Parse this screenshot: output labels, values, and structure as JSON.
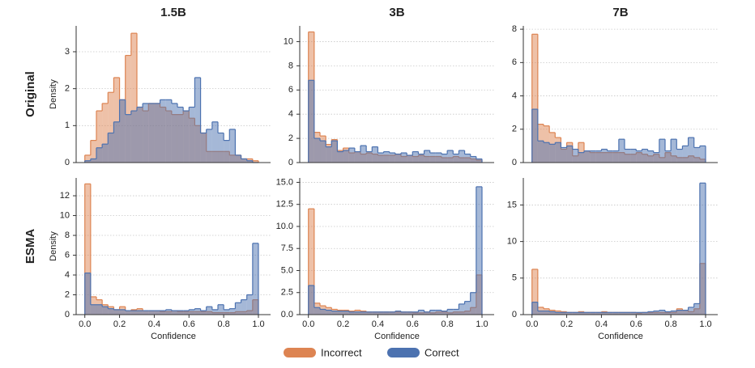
{
  "columns": [
    "1.5B",
    "3B",
    "7B"
  ],
  "rows": [
    "Original",
    "ESMA"
  ],
  "legend": [
    {
      "name": "Incorrect",
      "color": "#dd8452"
    },
    {
      "name": "Correct",
      "color": "#4c72b0"
    }
  ],
  "chart_data": [
    {
      "type": "histogram",
      "ylabel": "Density",
      "bins": [
        0,
        0.0333,
        0.0667,
        0.1,
        0.1333,
        0.1667,
        0.2,
        0.2333,
        0.2667,
        0.3,
        0.3333,
        0.3667,
        0.4,
        0.4333,
        0.4667,
        0.5,
        0.5333,
        0.5667,
        0.6,
        0.6333,
        0.6667,
        0.7,
        0.7333,
        0.7667,
        0.8,
        0.8333,
        0.8667,
        0.9,
        0.9333,
        0.9667,
        1
      ],
      "series": [
        {
          "values": [
            0.2,
            0.6,
            1.4,
            1.6,
            1.9,
            2.3,
            1.7,
            2.9,
            3.5,
            1.5,
            1.4,
            1.6,
            1.6,
            1.5,
            1.4,
            1.3,
            1.3,
            1.4,
            1.2,
            1.0,
            0.8,
            0.3,
            0.3,
            0.3,
            0.3,
            0.2,
            0.2,
            0.1,
            0.1,
            0.05
          ]
        },
        {
          "values": [
            0.05,
            0.1,
            0.4,
            0.5,
            0.8,
            1.1,
            1.7,
            1.3,
            1.4,
            1.5,
            1.6,
            1.6,
            1.6,
            1.7,
            1.7,
            1.6,
            1.5,
            1.4,
            1.5,
            2.3,
            0.8,
            0.9,
            1.1,
            0.8,
            0.6,
            0.9,
            0.2,
            0.1,
            0.05,
            0.0
          ]
        }
      ],
      "xlim": [
        -0.05,
        1.07
      ],
      "ylim": [
        0,
        3.7
      ],
      "yticks": [
        0,
        1,
        2,
        3
      ],
      "grid": true
    },
    {
      "type": "histogram",
      "bins": [
        0,
        0.0333,
        0.0667,
        0.1,
        0.1333,
        0.1667,
        0.2,
        0.2333,
        0.2667,
        0.3,
        0.3333,
        0.3667,
        0.4,
        0.4333,
        0.4667,
        0.5,
        0.5333,
        0.5667,
        0.6,
        0.6333,
        0.6667,
        0.7,
        0.7333,
        0.7667,
        0.8,
        0.8333,
        0.8667,
        0.9,
        0.9333,
        0.9667,
        1
      ],
      "series": [
        {
          "values": [
            10.8,
            2.5,
            2.2,
            1.5,
            1.9,
            1.0,
            1.2,
            0.8,
            0.9,
            0.7,
            0.8,
            0.7,
            0.6,
            0.6,
            0.6,
            0.7,
            0.5,
            0.6,
            0.5,
            0.6,
            0.5,
            0.5,
            0.5,
            0.4,
            0.4,
            0.5,
            0.4,
            0.4,
            0.3,
            0.2
          ]
        },
        {
          "values": [
            6.8,
            2.0,
            1.8,
            1.3,
            1.8,
            0.9,
            1.0,
            1.2,
            0.9,
            1.4,
            0.9,
            1.3,
            0.8,
            0.9,
            0.8,
            0.7,
            0.8,
            0.6,
            0.9,
            0.7,
            1.0,
            0.8,
            0.8,
            0.7,
            1.0,
            0.7,
            1.0,
            0.7,
            0.5,
            0.3
          ]
        }
      ],
      "xlim": [
        -0.05,
        1.07
      ],
      "ylim": [
        0,
        11.3
      ],
      "yticks": [
        0,
        2,
        4,
        6,
        8,
        10
      ],
      "grid": true
    },
    {
      "type": "histogram",
      "bins": [
        0,
        0.0333,
        0.0667,
        0.1,
        0.1333,
        0.1667,
        0.2,
        0.2333,
        0.2667,
        0.3,
        0.3333,
        0.3667,
        0.4,
        0.4333,
        0.4667,
        0.5,
        0.5333,
        0.5667,
        0.6,
        0.6333,
        0.6667,
        0.7,
        0.7333,
        0.7667,
        0.8,
        0.8333,
        0.8667,
        0.9,
        0.9333,
        0.9667,
        1
      ],
      "series": [
        {
          "values": [
            7.7,
            2.3,
            2.2,
            1.8,
            1.5,
            0.8,
            1.2,
            0.4,
            1.2,
            0.7,
            0.6,
            0.6,
            0.6,
            0.6,
            0.6,
            0.6,
            0.5,
            0.5,
            0.6,
            0.5,
            0.4,
            0.5,
            0.3,
            0.6,
            0.4,
            0.3,
            0.3,
            0.4,
            0.3,
            0.2
          ]
        },
        {
          "values": [
            3.2,
            1.3,
            1.2,
            1.1,
            1.2,
            0.9,
            1.0,
            0.8,
            0.6,
            0.7,
            0.7,
            0.7,
            0.8,
            0.7,
            0.7,
            1.4,
            0.8,
            0.8,
            0.7,
            0.8,
            0.7,
            0.6,
            1.4,
            0.7,
            1.4,
            0.8,
            1.0,
            1.5,
            0.9,
            1.0
          ]
        }
      ],
      "xlim": [
        -0.05,
        1.07
      ],
      "ylim": [
        0,
        8.2
      ],
      "yticks": [
        0,
        2,
        4,
        6,
        8
      ],
      "grid": true
    },
    {
      "type": "histogram",
      "ylabel": "Density",
      "xlabel": "Confidence",
      "bins": [
        0,
        0.0333,
        0.0667,
        0.1,
        0.1333,
        0.1667,
        0.2,
        0.2333,
        0.2667,
        0.3,
        0.3333,
        0.3667,
        0.4,
        0.4333,
        0.4667,
        0.5,
        0.5333,
        0.5667,
        0.6,
        0.6333,
        0.6667,
        0.7,
        0.7333,
        0.7667,
        0.8,
        0.8333,
        0.8667,
        0.9,
        0.9333,
        0.9667,
        1
      ],
      "series": [
        {
          "values": [
            13.2,
            1.8,
            1.5,
            1.0,
            0.8,
            0.5,
            0.8,
            0.4,
            0.5,
            0.6,
            0.4,
            0.4,
            0.4,
            0.3,
            0.3,
            0.4,
            0.3,
            0.3,
            0.3,
            0.3,
            0.3,
            0.3,
            0.2,
            0.2,
            0.2,
            0.2,
            0.3,
            0.3,
            0.4,
            1.5
          ]
        },
        {
          "values": [
            4.2,
            1.0,
            1.0,
            0.8,
            0.6,
            0.5,
            0.5,
            0.4,
            0.4,
            0.4,
            0.4,
            0.4,
            0.4,
            0.4,
            0.5,
            0.4,
            0.4,
            0.4,
            0.5,
            0.6,
            0.4,
            0.8,
            0.5,
            1.0,
            0.5,
            0.6,
            1.2,
            1.5,
            2.0,
            7.2
          ]
        }
      ],
      "xlim": [
        -0.05,
        1.07
      ],
      "ylim": [
        0,
        13.8
      ],
      "yticks": [
        0,
        2,
        4,
        6,
        8,
        10,
        12
      ],
      "xticks": [
        {
          "value": 0,
          "label": "0.0"
        },
        {
          "value": 0.2,
          "label": "0.2"
        },
        {
          "value": 0.4,
          "label": "0.4"
        },
        {
          "value": 0.6,
          "label": "0.6"
        },
        {
          "value": 0.8,
          "label": "0.8"
        },
        {
          "value": 1,
          "label": "1.0"
        }
      ],
      "grid": true
    },
    {
      "type": "histogram",
      "xlabel": "Confidence",
      "bins": [
        0,
        0.0333,
        0.0667,
        0.1,
        0.1333,
        0.1667,
        0.2,
        0.2333,
        0.2667,
        0.3,
        0.3333,
        0.3667,
        0.4,
        0.4333,
        0.4667,
        0.5,
        0.5333,
        0.5667,
        0.6,
        0.6333,
        0.6667,
        0.7,
        0.7333,
        0.7667,
        0.8,
        0.8333,
        0.8667,
        0.9,
        0.9333,
        0.9667,
        1
      ],
      "series": [
        {
          "values": [
            12.0,
            1.3,
            1.0,
            0.8,
            0.6,
            0.5,
            0.5,
            0.4,
            0.5,
            0.4,
            0.3,
            0.3,
            0.3,
            0.3,
            0.3,
            0.3,
            0.3,
            0.3,
            0.2,
            0.2,
            0.3,
            0.2,
            0.3,
            0.3,
            0.2,
            0.3,
            0.3,
            0.4,
            0.8,
            4.5
          ]
        },
        {
          "values": [
            3.3,
            0.8,
            0.6,
            0.5,
            0.4,
            0.4,
            0.4,
            0.3,
            0.3,
            0.3,
            0.3,
            0.3,
            0.3,
            0.3,
            0.3,
            0.4,
            0.3,
            0.3,
            0.3,
            0.5,
            0.3,
            0.5,
            0.5,
            0.4,
            0.6,
            0.6,
            1.2,
            1.5,
            2.5,
            14.5
          ]
        }
      ],
      "xlim": [
        -0.05,
        1.07
      ],
      "ylim": [
        0,
        15.5
      ],
      "yticks": [
        {
          "value": 0,
          "label": "0.0"
        },
        2.5,
        {
          "value": 5,
          "label": "5.0"
        },
        7.5,
        {
          "value": 10,
          "label": "10.0"
        },
        12.5,
        {
          "value": 15,
          "label": "15.0"
        }
      ],
      "xticks": [
        {
          "value": 0,
          "label": "0.0"
        },
        {
          "value": 0.2,
          "label": "0.2"
        },
        {
          "value": 0.4,
          "label": "0.4"
        },
        {
          "value": 0.6,
          "label": "0.6"
        },
        {
          "value": 0.8,
          "label": "0.8"
        },
        {
          "value": 1,
          "label": "1.0"
        }
      ],
      "grid": true
    },
    {
      "type": "histogram",
      "xlabel": "Confidence",
      "bins": [
        0,
        0.0333,
        0.0667,
        0.1,
        0.1333,
        0.1667,
        0.2,
        0.2333,
        0.2667,
        0.3,
        0.3333,
        0.3667,
        0.4,
        0.4333,
        0.4667,
        0.5,
        0.5333,
        0.5667,
        0.6,
        0.6333,
        0.6667,
        0.7,
        0.7333,
        0.7667,
        0.8,
        0.8333,
        0.8667,
        0.9,
        0.9333,
        0.9667,
        1
      ],
      "series": [
        {
          "values": [
            6.2,
            1.0,
            0.8,
            0.6,
            0.5,
            0.4,
            0.3,
            0.3,
            0.4,
            0.3,
            0.3,
            0.3,
            0.4,
            0.3,
            0.3,
            0.3,
            0.3,
            0.3,
            0.2,
            0.3,
            0.3,
            0.3,
            0.3,
            0.3,
            0.3,
            0.8,
            0.6,
            0.4,
            0.8,
            7.0
          ]
        },
        {
          "values": [
            1.7,
            0.5,
            0.5,
            0.4,
            0.3,
            0.3,
            0.3,
            0.3,
            0.3,
            0.3,
            0.3,
            0.3,
            0.3,
            0.3,
            0.3,
            0.3,
            0.3,
            0.3,
            0.3,
            0.3,
            0.4,
            0.5,
            0.6,
            0.4,
            0.5,
            0.6,
            0.6,
            1.0,
            1.5,
            18.0
          ]
        }
      ],
      "xlim": [
        -0.05,
        1.07
      ],
      "ylim": [
        0,
        18.7
      ],
      "yticks": [
        0,
        5,
        10,
        15
      ],
      "xticks": [
        {
          "value": 0,
          "label": "0.0"
        },
        {
          "value": 0.2,
          "label": "0.2"
        },
        {
          "value": 0.4,
          "label": "0.4"
        },
        {
          "value": 0.6,
          "label": "0.6"
        },
        {
          "value": 0.8,
          "label": "0.8"
        },
        {
          "value": 1,
          "label": "1.0"
        }
      ],
      "grid": true
    }
  ]
}
